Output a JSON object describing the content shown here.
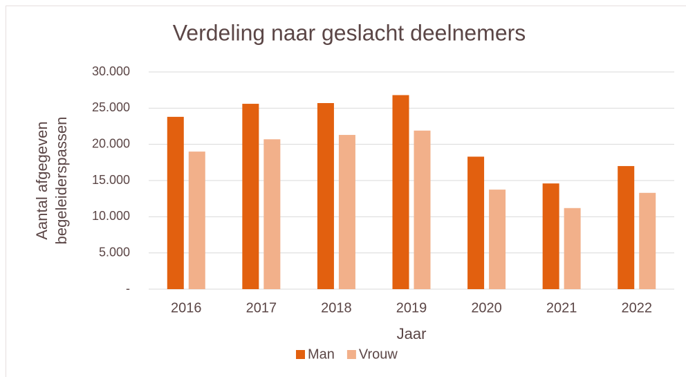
{
  "chart_data": {
    "type": "bar",
    "title": "Verdeling naar geslacht deelnemers",
    "x_label": "Jaar",
    "y_label": [
      "Aantal afgegeven",
      "begeleiderspassen"
    ],
    "categories": [
      "2016",
      "2017",
      "2018",
      "2019",
      "2020",
      "2021",
      "2022"
    ],
    "series": [
      {
        "name": "Man",
        "color": "#e2600f",
        "values": [
          23800,
          25600,
          25700,
          26800,
          18300,
          14600,
          17000
        ]
      },
      {
        "name": "Vrouw",
        "color": "#f2b08a",
        "values": [
          19000,
          20700,
          21300,
          21900,
          13750,
          11200,
          13300
        ]
      }
    ],
    "ylim": [
      0,
      30000
    ],
    "yticks": [
      {
        "value": 0,
        "label": "-"
      },
      {
        "value": 5000,
        "label": "5.000"
      },
      {
        "value": 10000,
        "label": "10.000"
      },
      {
        "value": 15000,
        "label": "15.000"
      },
      {
        "value": 20000,
        "label": "20.000"
      },
      {
        "value": 25000,
        "label": "25.000"
      },
      {
        "value": 30000,
        "label": "30.000"
      }
    ],
    "grid": true,
    "legend": "bottom"
  }
}
